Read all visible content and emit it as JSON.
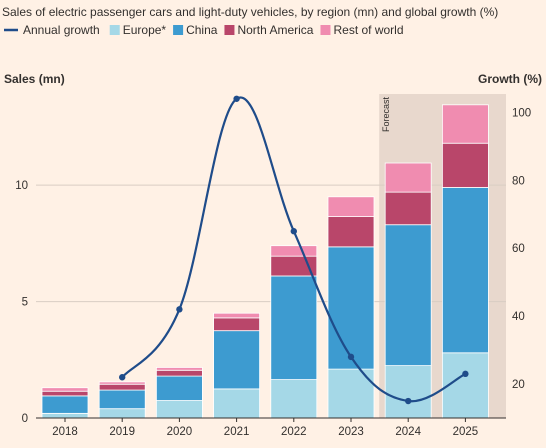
{
  "chart_data": {
    "type": "bar",
    "title": "Sales of electric passenger cars and light-duty vehicles, by region (mn) and global growth (%)",
    "ylabel": "Sales (mn)",
    "y2label": "Growth (%)",
    "categories": [
      "2018",
      "2019",
      "2020",
      "2021",
      "2022",
      "2023",
      "2024",
      "2025"
    ],
    "ylim": [
      0,
      14
    ],
    "y2lim": [
      10,
      106
    ],
    "yticks": [
      0,
      5,
      10
    ],
    "y2ticks": [
      20,
      40,
      60,
      80,
      100
    ],
    "stacked": true,
    "forecast_label": "Forecast",
    "forecast_categories": [
      "2024",
      "2025"
    ],
    "grid": true,
    "legend_position": "top-left",
    "series": [
      {
        "name": "Europe*",
        "color": "#a5d8e7",
        "values": [
          0.2,
          0.4,
          0.75,
          1.25,
          1.65,
          2.1,
          2.25,
          2.8
        ]
      },
      {
        "name": "China",
        "color": "#3d9bd0",
        "values": [
          0.75,
          0.8,
          1.05,
          2.5,
          4.45,
          5.25,
          6.05,
          7.1
        ]
      },
      {
        "name": "North America",
        "color": "#b9466a",
        "values": [
          0.2,
          0.25,
          0.25,
          0.55,
          0.85,
          1.3,
          1.4,
          1.9
        ]
      },
      {
        "name": "Rest of world",
        "color": "#f08cb0",
        "values": [
          0.15,
          0.1,
          0.12,
          0.2,
          0.45,
          0.85,
          1.25,
          1.65
        ]
      }
    ],
    "line_series": {
      "name": "Annual growth",
      "color": "#1f4c8a",
      "axis": "right",
      "values": [
        null,
        22,
        42,
        104,
        65,
        28,
        15,
        23
      ]
    }
  }
}
